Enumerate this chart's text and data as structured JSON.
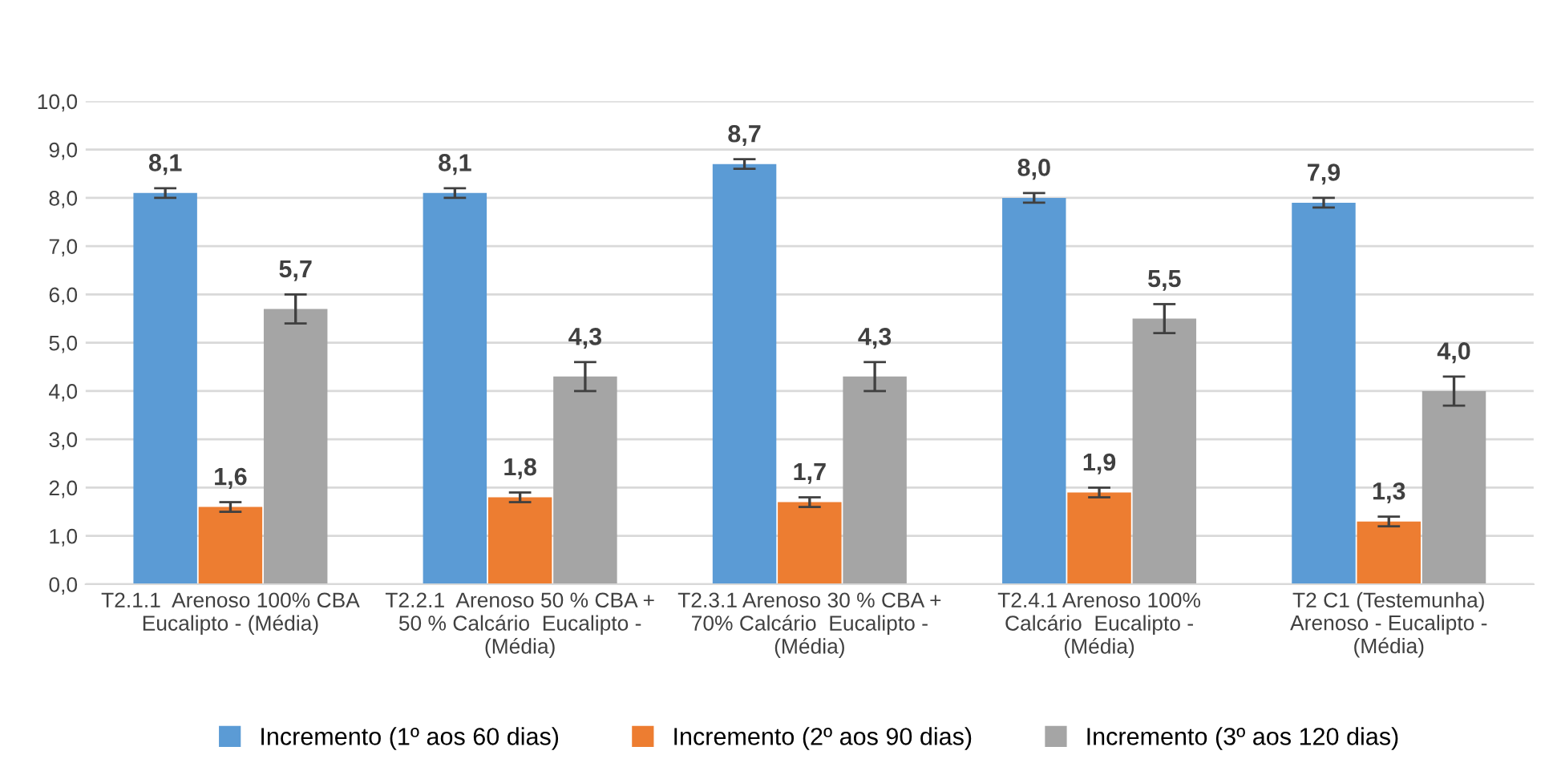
{
  "chart_data": {
    "type": "bar",
    "categories": [
      "T2.1.1  Arenoso 100% CBA\nEucalipto - (Média)",
      "T2.2.1  Arenoso 50 % CBA +\n50 % Calcário  Eucalipto -\n(Média)",
      "T2.3.1 Arenoso 30 % CBA +\n70% Calcário  Eucalipto -\n(Média)",
      "T2.4.1 Arenoso 100%\nCalcário  Eucalipto -\n(Média)",
      "T2 C1 (Testemunha)\nArenoso - Eucalipto -\n(Média)"
    ],
    "series": [
      {
        "name": "Incremento (1º aos 60 dias)",
        "color": "#5b9bd5",
        "values": [
          8.1,
          8.1,
          8.7,
          8.0,
          7.9
        ],
        "errors": [
          0.1,
          0.1,
          0.1,
          0.1,
          0.1
        ],
        "value_labels": [
          "8,1",
          "8,1",
          "8,7",
          "8,0",
          "7,9"
        ]
      },
      {
        "name": "Incremento (2º aos 90 dias)",
        "color": "#ed7d31",
        "values": [
          1.6,
          1.8,
          1.7,
          1.9,
          1.3
        ],
        "errors": [
          0.1,
          0.1,
          0.1,
          0.1,
          0.1
        ],
        "value_labels": [
          "1,6",
          "1,8",
          "1,7",
          "1,9",
          "1,3"
        ]
      },
      {
        "name": "Incremento (3º aos 120 dias)",
        "color": "#a5a5a5",
        "values": [
          5.7,
          4.3,
          4.3,
          5.5,
          4.0
        ],
        "errors": [
          0.3,
          0.3,
          0.3,
          0.3,
          0.3
        ],
        "value_labels": [
          "5,7",
          "4,3",
          "4,3",
          "5,5",
          "4,0"
        ]
      }
    ],
    "ylim": [
      0,
      10
    ],
    "yticks": [
      {
        "value": 0,
        "label": "0,0"
      },
      {
        "value": 1,
        "label": "1,0"
      },
      {
        "value": 2,
        "label": "2,0"
      },
      {
        "value": 3,
        "label": "3,0"
      },
      {
        "value": 4,
        "label": "4,0"
      },
      {
        "value": 5,
        "label": "5,0"
      },
      {
        "value": 6,
        "label": "6,0"
      },
      {
        "value": 7,
        "label": "7,0"
      },
      {
        "value": 8,
        "label": "8,0"
      },
      {
        "value": 9,
        "label": "9,0"
      },
      {
        "value": 10,
        "label": "10,0"
      }
    ],
    "grid": "y",
    "legend": "bottom"
  }
}
